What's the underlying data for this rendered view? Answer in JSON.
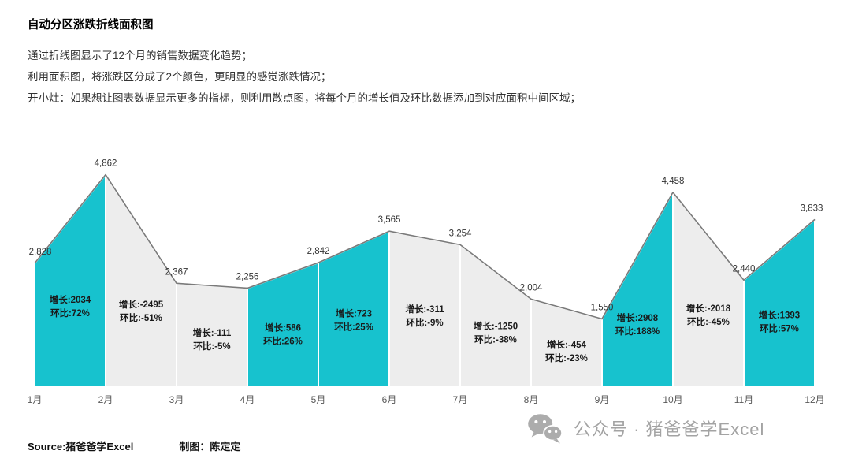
{
  "header": {
    "title": "自动分区涨跌折线面积图",
    "description_lines": [
      "通过折线图显示了12个月的销售数据变化趋势；",
      "利用面积图，将涨跌区分成了2个颜色，更明显的感觉涨跌情况；",
      "开小灶：如果想让图表数据显示更多的指标，则利用散点图，将每个月的增长值及环比数据添加到对应面积中间区域；"
    ]
  },
  "chart_data": {
    "type": "area",
    "title": "自动分区涨跌折线面积图",
    "categories": [
      "1月",
      "2月",
      "3月",
      "4月",
      "5月",
      "6月",
      "7月",
      "8月",
      "9月",
      "10月",
      "11月",
      "12月"
    ],
    "values": [
      2828,
      4862,
      2367,
      2256,
      2842,
      3565,
      3254,
      2004,
      1550,
      4458,
      2440,
      3833
    ],
    "values_formatted": [
      "2,828",
      "4,862",
      "2,367",
      "2,256",
      "2,842",
      "3,565",
      "3,254",
      "2,004",
      "1,550",
      "4,458",
      "2,440",
      "3,833"
    ],
    "growth_label_prefix": "增长:",
    "ratio_label_prefix": "环比:",
    "segments": [
      {
        "growth": 2034,
        "ratio": "72%"
      },
      {
        "growth": -2495,
        "ratio": "-51%"
      },
      {
        "growth": -111,
        "ratio": "-5%"
      },
      {
        "growth": 586,
        "ratio": "26%"
      },
      {
        "growth": 723,
        "ratio": "25%"
      },
      {
        "growth": -311,
        "ratio": "-9%"
      },
      {
        "growth": -1250,
        "ratio": "-38%"
      },
      {
        "growth": -454,
        "ratio": "-23%"
      },
      {
        "growth": 2908,
        "ratio": "188%"
      },
      {
        "growth": -2018,
        "ratio": "-45%"
      },
      {
        "growth": 1393,
        "ratio": "57%"
      }
    ],
    "colors": {
      "up": "#17C2CE",
      "down": "#EDEDED",
      "line": "#7A7A7A",
      "label": "#1a1a1a",
      "value_label": "#333333",
      "axis_label": "#595959"
    },
    "ylim": [
      0,
      5435
    ],
    "grid": false,
    "legend": "none"
  },
  "footer": {
    "source": "Source:猪爸爸学Excel",
    "credit": "制图：陈定定",
    "wechat_text": "公众号 · 猪爸爸学Excel"
  }
}
